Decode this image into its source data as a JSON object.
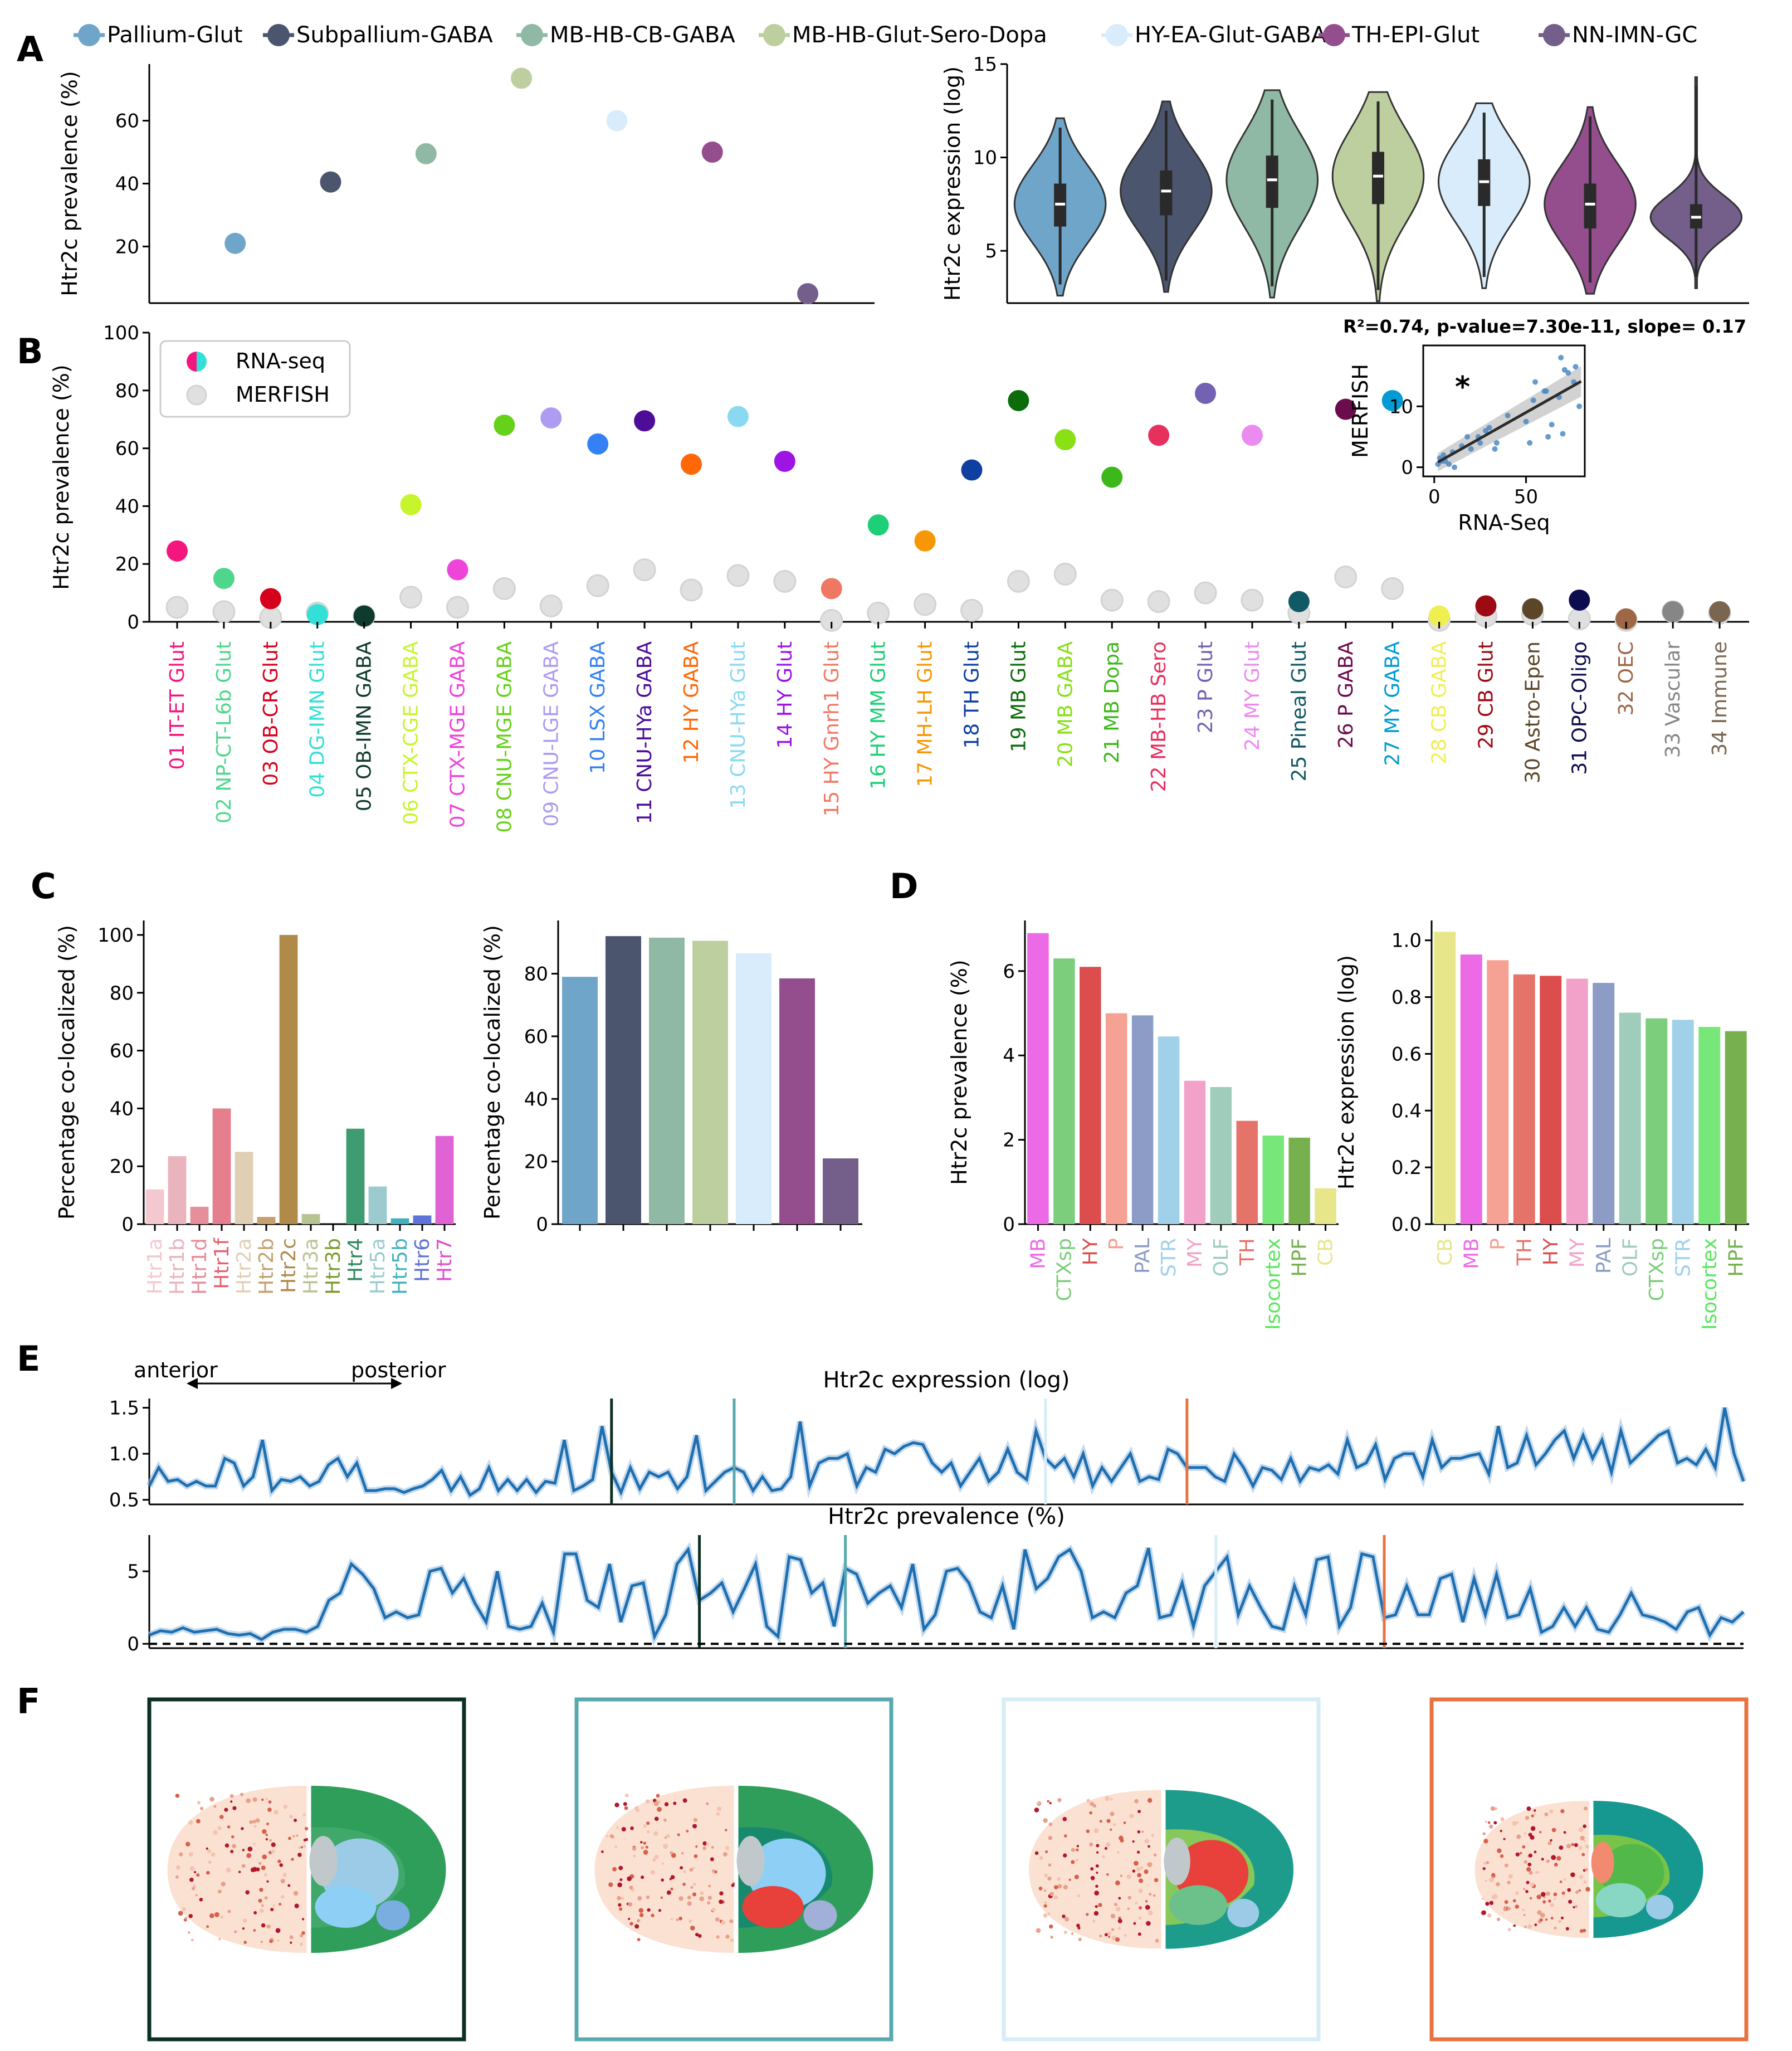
{
  "panel_letters": [
    "A",
    "B",
    "C",
    "D",
    "E",
    "F"
  ],
  "colors": {
    "Pallium-Glut": "#6fa5c9",
    "Subpallium-GABA": "#4b566e",
    "MB-HB-CB-GABA": "#8fb9a4",
    "MB-HB-Glut-Sero-Dopa": "#bdcf9e",
    "HY-EA-Glut-GABA": "#d9ecfb",
    "TH-EPI-Glut": "#944d8d",
    "NN-IMN-GC": "#735f8a"
  },
  "chart_data": [
    {
      "id": "A-left",
      "type": "scatter",
      "legend": [
        "Pallium-Glut",
        "Subpallium-GABA",
        "MB-HB-CB-GABA",
        "MB-HB-Glut-Sero-Dopa",
        "HY-EA-Glut-GABA",
        "TH-EPI-Glut",
        "NN-IMN-GC"
      ],
      "values": [
        21,
        40.5,
        49.5,
        73.5,
        60,
        50,
        5
      ],
      "ylabel": "Htr2c prevalence (%)",
      "yticks": [
        20,
        40,
        60
      ],
      "ylim": [
        2,
        78
      ]
    },
    {
      "id": "A-right",
      "type": "violin",
      "categories": [
        "Pallium-Glut",
        "Subpallium-GABA",
        "MB-HB-CB-GABA",
        "MB-HB-Glut-Sero-Dopa",
        "HY-EA-Glut-GABA",
        "TH-EPI-Glut",
        "NN-IMN-GC"
      ],
      "medians": [
        7.5,
        8.2,
        8.8,
        9.0,
        8.7,
        7.5,
        6.8
      ],
      "q1": [
        6.3,
        6.9,
        7.3,
        7.5,
        7.4,
        6.2,
        6.2
      ],
      "q3": [
        8.6,
        9.3,
        10.1,
        10.3,
        9.9,
        8.6,
        7.5
      ],
      "min": [
        2.6,
        2.8,
        2.5,
        2.3,
        3.0,
        2.7,
        3.0
      ],
      "max": [
        12.1,
        13.0,
        13.6,
        13.5,
        12.9,
        12.7,
        14.3
      ],
      "ylabel": "Htr2c expression (log)",
      "yticks": [
        5,
        10,
        15
      ],
      "ylim": [
        2.2,
        15
      ]
    },
    {
      "id": "B",
      "type": "scatter",
      "categories": [
        "01 IT-ET Glut",
        "02 NP-CT-L6b Glut",
        "03 OB-CR Glut",
        "04 DG-IMN Glut",
        "05 OB-IMN GABA",
        "06 CTX-CGE GABA",
        "07 CTX-MGE GABA",
        "08 CNU-MGE GABA",
        "09 CNU-LGE GABA",
        "10 LSX GABA",
        "11 CNU-HYa GABA",
        "12 HY GABA",
        "13 CNU-HYa Glut",
        "14 HY Glut",
        "15 HY Gnrh1 Glut",
        "16 HY MM Glut",
        "17 MH-LH Glut",
        "18 TH Glut",
        "19 MB Glut",
        "20 MB GABA",
        "21 MB Dopa",
        "22 MB-HB Sero",
        "23 P Glut",
        "24 MY Glut",
        "25 Pineal Glut",
        "26 P GABA",
        "27 MY GABA",
        "28 CB GABA",
        "29 CB Glut",
        "30 Astro-Epen",
        "31 OPC-Oligo",
        "32 OEC",
        "33 Vascular",
        "34 Immune"
      ],
      "category_colors": [
        "#f5157f",
        "#4fd68d",
        "#d7001c",
        "#33e0d7",
        "#0e3b2e",
        "#c6f52c",
        "#ee44d8",
        "#66d11a",
        "#ad9cf1",
        "#3381f5",
        "#4d0d99",
        "#ff6707",
        "#8ad9f0",
        "#9d14e5",
        "#f07863",
        "#1dcf77",
        "#f79705",
        "#0e3fa1",
        "#0c6c0c",
        "#88e015",
        "#3cb81a",
        "#e8305e",
        "#7361b2",
        "#eb8bf0",
        "#115964",
        "#6b0c4d",
        "#039bd3",
        "#f0ef52",
        "#9e0a13",
        "#5b4629",
        "#0c0c4f",
        "#9e6746",
        "#868686",
        "#7a6650"
      ],
      "series": [
        {
          "name": "RNA-seq",
          "values": [
            24.5,
            15,
            8,
            2.5,
            2,
            40.5,
            18,
            68,
            70.5,
            61.5,
            69.5,
            54.5,
            71,
            55.5,
            11.5,
            33.5,
            28,
            52.5,
            76.5,
            63,
            50,
            64.5,
            79,
            64.5,
            7,
            73.5,
            76.5,
            2,
            5.5,
            4.5,
            7.5,
            1,
            3.5,
            3.5
          ]
        },
        {
          "name": "MERFISH",
          "values": [
            5,
            3.5,
            1.5,
            3,
            2,
            8.5,
            5,
            11.5,
            5.5,
            12.5,
            18,
            11,
            16,
            14,
            0.5,
            3,
            6,
            4,
            14,
            16.5,
            7.5,
            7,
            10,
            7.5,
            3,
            15.5,
            11.5,
            0.5,
            2,
            2.5,
            1,
            0.5,
            3.5,
            3
          ]
        }
      ],
      "ylabel": "Htr2c prevalence (%)",
      "yticks": [
        0,
        20,
        40,
        60,
        80,
        100
      ],
      "ylim": [
        0,
        100
      ],
      "legend": [
        "RNA-seq",
        "MERFISH"
      ]
    },
    {
      "id": "B-inset",
      "type": "scatter",
      "title": "R²=0.74, p-value=7.30e-11, slope= 0.17",
      "xlabel": "RNA-Seq",
      "ylabel": "MERFISH",
      "annotation": "*",
      "xticks": [
        0,
        50
      ],
      "yticks": [
        0,
        10
      ],
      "xlim": [
        -6,
        82
      ],
      "ylim": [
        -1.5,
        20
      ],
      "points": [
        [
          2,
          0.5
        ],
        [
          3,
          1.5
        ],
        [
          4,
          1
        ],
        [
          5,
          2
        ],
        [
          6,
          1
        ],
        [
          8,
          0.5
        ],
        [
          10,
          2.5
        ],
        [
          11,
          0
        ],
        [
          15,
          3.5
        ],
        [
          18,
          5
        ],
        [
          20,
          3
        ],
        [
          24,
          5
        ],
        [
          25,
          4
        ],
        [
          28,
          6
        ],
        [
          30,
          6.5
        ],
        [
          33,
          3
        ],
        [
          34,
          4
        ],
        [
          40,
          8.5
        ],
        [
          50,
          7.5
        ],
        [
          52,
          4
        ],
        [
          54,
          11
        ],
        [
          55,
          14
        ],
        [
          60,
          12.5
        ],
        [
          61,
          12.5
        ],
        [
          62,
          5
        ],
        [
          64,
          7
        ],
        [
          68,
          11.5
        ],
        [
          69,
          18
        ],
        [
          70,
          5.5
        ],
        [
          71,
          16
        ],
        [
          73,
          15.5
        ],
        [
          76,
          14
        ],
        [
          77,
          16.5
        ],
        [
          79,
          10
        ]
      ],
      "fit": {
        "intercept": 0.5,
        "slope": 0.17
      }
    },
    {
      "id": "C-left",
      "type": "bar",
      "categories": [
        "Htr1a",
        "Htr1b",
        "Htr1d",
        "Htr1f",
        "Htr2a",
        "Htr2b",
        "Htr2c",
        "Htr3a",
        "Htr3b",
        "Htr4",
        "Htr5a",
        "Htr5b",
        "Htr6",
        "Htr7"
      ],
      "values": [
        12,
        23.5,
        6,
        40,
        25,
        2.5,
        100,
        3.5,
        0,
        33,
        13,
        2,
        3,
        30.5
      ],
      "bar_colors": [
        "#f3c8cf",
        "#eab4bd",
        "#e78e9b",
        "#e67f8d",
        "#e0cfb5",
        "#c6a16f",
        "#b08a49",
        "#b8c393",
        "#7d9b2e",
        "#3f9b72",
        "#9ccbcf",
        "#43b1bf",
        "#5f74d6",
        "#df63d4"
      ],
      "label_colors": [
        "#f3c8cf",
        "#eab4bd",
        "#e78e9b",
        "#e4626f",
        "#e0cfb5",
        "#c6a16f",
        "#b08a49",
        "#b8c393",
        "#7d9b2e",
        "#2f8a60",
        "#9ccbcf",
        "#43b1bf",
        "#5f74d6",
        "#df4fd4"
      ],
      "ylabel": "Percentage co-localized (%)",
      "yticks": [
        0,
        20,
        40,
        60,
        80,
        100
      ],
      "ylim": [
        0,
        105
      ]
    },
    {
      "id": "C-right",
      "type": "bar",
      "categories": [
        "Pallium-Glut",
        "Subpallium-GABA",
        "MB-HB-CB-GABA",
        "MB-HB-Glut-Sero-Dopa",
        "HY-EA-Glut-GABA",
        "TH-EPI-Glut",
        "NN-IMN-GC"
      ],
      "values": [
        79,
        92,
        91.5,
        90.5,
        86.5,
        78.5,
        21
      ],
      "ylabel": "Percentage co-localized (%)",
      "yticks": [
        0,
        20,
        40,
        60,
        80
      ],
      "ylim": [
        0,
        97
      ]
    },
    {
      "id": "D-left",
      "type": "bar",
      "categories": [
        "MB",
        "CTXsp",
        "HY",
        "P",
        "PAL",
        "STR",
        "MY",
        "OLF",
        "TH",
        "Isocortex",
        "HPF",
        "CB"
      ],
      "values": [
        6.9,
        6.3,
        6.1,
        5.0,
        4.95,
        4.45,
        3.4,
        3.25,
        2.45,
        2.1,
        2.05,
        0.85
      ],
      "bar_colors": [
        "#ec6ae6",
        "#7ccd7c",
        "#dc4d4d",
        "#f5a193",
        "#8c9cc6",
        "#a0d1e8",
        "#f2a2c8",
        "#9fccbb",
        "#e6736a",
        "#77e77a",
        "#77b04f",
        "#e7e68a"
      ],
      "label_colors": [
        "#ec6ae6",
        "#7ccd7c",
        "#dc4d4d",
        "#f5a193",
        "#8c9cc6",
        "#a0d1e8",
        "#f2a2c8",
        "#9fccbb",
        "#e6736a",
        "#5ae65f",
        "#77b04f",
        "#e7e68a"
      ],
      "ylabel": "Htr2c prevalence (%)",
      "yticks": [
        0,
        2,
        4,
        6
      ],
      "ylim": [
        0,
        7.2
      ]
    },
    {
      "id": "D-right",
      "type": "bar",
      "categories": [
        "CB",
        "MB",
        "P",
        "TH",
        "HY",
        "MY",
        "PAL",
        "OLF",
        "CTXsp",
        "STR",
        "Isocortex",
        "HPF"
      ],
      "values": [
        1.03,
        0.95,
        0.93,
        0.88,
        0.875,
        0.865,
        0.85,
        0.745,
        0.725,
        0.72,
        0.695,
        0.68
      ],
      "bar_colors": [
        "#e7e68a",
        "#ec6ae6",
        "#f5a193",
        "#e6736a",
        "#dc4d4d",
        "#f2a2c8",
        "#8c9cc6",
        "#9fccbb",
        "#7ccd7c",
        "#a0d1e8",
        "#77e77a",
        "#77b04f"
      ],
      "label_colors": [
        "#e7e68a",
        "#ec6ae6",
        "#f5a193",
        "#e6736a",
        "#dc4d4d",
        "#f2a2c8",
        "#8c9cc6",
        "#9fccbb",
        "#7ccd7c",
        "#a0d1e8",
        "#5ae65f",
        "#77b04f"
      ],
      "ylabel": "Htr2c expression (log)",
      "yticks": [
        0.0,
        0.2,
        0.4,
        0.6,
        0.8,
        1.0
      ],
      "ylim": [
        0,
        1.07
      ]
    },
    {
      "id": "E-top",
      "type": "line",
      "title": "Htr2c expression (log)",
      "yticks": [
        0.5,
        1.0,
        1.5
      ],
      "ylim": [
        0.45,
        1.6
      ],
      "vlines": [
        {
          "x": 49,
          "color": "#0d3024"
        },
        {
          "x": 62,
          "color": "#58a9ae"
        },
        {
          "x": 95,
          "color": "#d6edf7"
        },
        {
          "x": 110,
          "color": "#e8733f"
        }
      ],
      "arrow": {
        "left_label": "anterior",
        "right_label": "posterior"
      },
      "values": [
        0.65,
        0.85,
        0.7,
        0.72,
        0.65,
        0.7,
        0.65,
        0.65,
        0.95,
        0.9,
        0.65,
        0.75,
        1.15,
        0.6,
        0.72,
        0.7,
        0.75,
        0.65,
        0.7,
        0.88,
        0.95,
        0.75,
        0.9,
        0.6,
        0.6,
        0.62,
        0.62,
        0.58,
        0.62,
        0.65,
        0.72,
        0.82,
        0.6,
        0.75,
        0.55,
        0.62,
        0.85,
        0.6,
        0.72,
        0.6,
        0.72,
        0.58,
        0.7,
        0.68,
        1.15,
        0.6,
        0.65,
        0.72,
        1.3,
        0.8,
        0.58,
        0.85,
        0.62,
        0.8,
        0.75,
        0.8,
        0.62,
        0.75,
        1.2,
        0.6,
        0.7,
        0.8,
        0.85,
        0.8,
        0.6,
        0.75,
        0.6,
        0.62,
        0.75,
        1.35,
        0.65,
        0.9,
        0.95,
        0.95,
        1.0,
        0.65,
        0.85,
        0.8,
        1.05,
        1.0,
        1.08,
        1.12,
        1.1,
        0.9,
        0.8,
        0.9,
        0.65,
        0.8,
        0.95,
        0.7,
        0.8,
        1.05,
        0.8,
        0.72,
        1.25,
        0.95,
        0.85,
        0.95,
        0.75,
        1.0,
        0.65,
        0.85,
        0.7,
        0.85,
        1.0,
        0.7,
        0.75,
        0.72,
        1.05,
        1.0,
        0.85,
        0.85,
        0.85,
        0.75,
        0.7,
        1.0,
        0.85,
        0.65,
        0.85,
        0.82,
        0.72,
        0.95,
        0.7,
        0.85,
        0.82,
        0.88,
        0.78,
        1.15,
        0.85,
        0.9,
        1.1,
        0.72,
        0.95,
        1.0,
        1.0,
        0.75,
        1.15,
        0.85,
        0.95,
        0.95,
        0.98,
        1.0,
        0.78,
        1.3,
        0.85,
        0.9,
        1.2,
        0.88,
        1.0,
        1.15,
        1.25,
        0.95,
        1.2,
        0.95,
        1.15,
        0.8,
        1.25,
        0.9,
        1.0,
        1.1,
        1.2,
        1.25,
        0.9,
        0.95,
        0.88,
        1.05,
        0.85,
        1.5,
        1.0,
        0.7
      ]
    },
    {
      "id": "E-bottom",
      "type": "line",
      "title": "Htr2c prevalence (%)",
      "yticks": [
        0,
        5
      ],
      "ylim": [
        -0.3,
        7.5
      ],
      "vlines": [
        {
          "x": 49,
          "color": "#0d3024"
        },
        {
          "x": 62,
          "color": "#58a9ae"
        },
        {
          "x": 95,
          "color": "#d6edf7"
        },
        {
          "x": 110,
          "color": "#e8733f"
        }
      ],
      "values": [
        0.6,
        0.9,
        0.8,
        1.1,
        0.8,
        0.9,
        1.0,
        0.7,
        0.6,
        0.7,
        0.3,
        0.8,
        1.0,
        1.0,
        0.8,
        1.2,
        3.0,
        3.5,
        5.5,
        4.8,
        3.8,
        1.8,
        2.2,
        1.8,
        2.0,
        5.0,
        5.2,
        3.5,
        4.5,
        2.8,
        1.5,
        5.0,
        1.2,
        1.0,
        1.2,
        2.8,
        0.8,
        6.2,
        6.2,
        3.0,
        2.5,
        5.5,
        1.5,
        4.0,
        4.2,
        0.5,
        2.0,
        5.5,
        6.5,
        3.0,
        3.5,
        4.2,
        2.2,
        3.8,
        5.5,
        1.2,
        0.5,
        6.0,
        5.8,
        3.5,
        4.2,
        1.2,
        5.2,
        4.8,
        2.8,
        3.5,
        4.0,
        2.5,
        5.5,
        1.0,
        2.0,
        5.0,
        5.2,
        4.2,
        2.2,
        1.8,
        4.0,
        1.0,
        6.5,
        3.8,
        4.5,
        6.0,
        6.5,
        5.0,
        1.8,
        2.2,
        1.8,
        3.5,
        4.0,
        6.6,
        1.8,
        2.0,
        4.2,
        1.2,
        4.0,
        5.0,
        6.0,
        2.0,
        4.0,
        2.5,
        1.2,
        1.0,
        4.0,
        2.0,
        5.8,
        6.0,
        1.2,
        2.5,
        6.2,
        6.0,
        1.8,
        2.0,
        4.0,
        2.0,
        2.0,
        4.5,
        4.8,
        1.5,
        4.5,
        2.0,
        4.8,
        1.8,
        2.0,
        3.8,
        0.8,
        1.2,
        2.5,
        1.2,
        2.5,
        1.0,
        0.8,
        2.0,
        3.5,
        2.0,
        1.8,
        1.5,
        1.0,
        2.2,
        2.5,
        0.6,
        1.8,
        1.5,
        2.2
      ]
    }
  ],
  "panel_F": {
    "frame_colors": [
      "#0d3024",
      "#58a9ae",
      "#d6edf7",
      "#e8733f"
    ]
  }
}
